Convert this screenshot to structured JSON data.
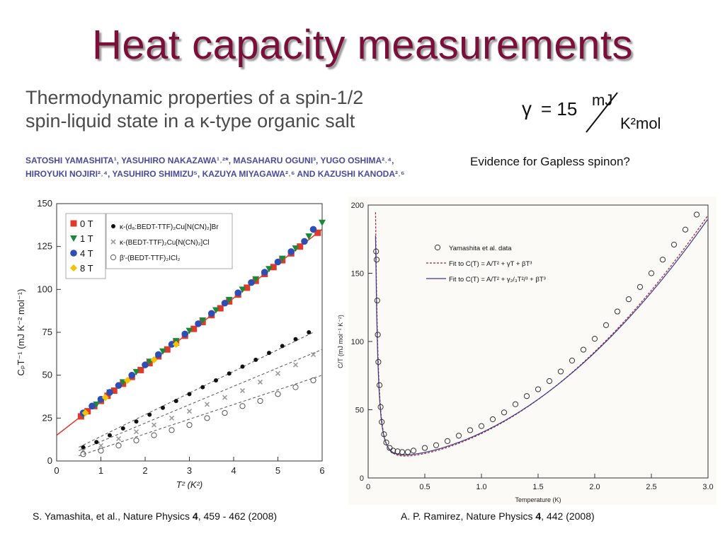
{
  "slide": {
    "title": "Heat capacity measurements",
    "paper_title_line1": "Thermodynamic properties of a spin-1/2",
    "paper_title_line2": "spin-liquid state in a κ-type organic salt",
    "authors_line1": "SATOSHI YAMASHITA¹, YASUHIRO NAKAZAWA¹˒²*, MASAHARU OGUNI³, YUGO OSHIMA²˒⁴,",
    "authors_line2": "HIROYUKI NOJIRI²˒⁴, YASUHIRO SHIMIZU⁵, KAZUYA MIYAGAWA²˒⁶ AND KAZUSHI KANODA²˒⁶",
    "gamma_symbol": "γ",
    "gamma_eq": "= 15",
    "gamma_unit_num": "mJ",
    "gamma_unit_den": "K²mol",
    "evidence": "Evidence for Gapless spinon?",
    "citation_left_pre": "S. Yamashita, et al., Nature Physics ",
    "citation_left_vol": "4",
    "citation_left_post": ", 459 - 462 (2008)",
    "citation_right_pre": "A. P. Ramirez, Nature Physics ",
    "citation_right_vol": "4",
    "citation_right_post": ", 442 (2008)"
  },
  "chart_data": [
    {
      "type": "scatter",
      "xlabel": "T² (K²)",
      "ylabel": "CₚT⁻¹ (mJ K⁻² mol⁻¹)",
      "xlim": [
        0,
        6
      ],
      "ylim": [
        0,
        150
      ],
      "xticks": [
        "0",
        "1",
        "2",
        "3",
        "4",
        "5",
        "6"
      ],
      "yticks": [
        "0",
        "25",
        "50",
        "75",
        "100",
        "125",
        "150"
      ],
      "legend_fields": [
        "0 T",
        "1 T",
        "4 T",
        "8 T"
      ],
      "legend_fields_colors": [
        "#e23a2a",
        "#1a8a3a",
        "#2d4fb5",
        "#f0c400"
      ],
      "legend_samples": [
        "κ-(d₈:BEDT-TTF)₂Cu[N(CN)₂]Br",
        "κ-(BEDT-TTF)₂Cu[N(CN)₂]Cl",
        "β′-(BEDT-TTF)₂ICl₂"
      ],
      "legend_placement": "top-right",
      "fit_line": {
        "intercept": 15.0,
        "slope": 20.0
      },
      "series": [
        {
          "name": "0 T",
          "color": "#e23a2a",
          "marker": "square",
          "x": [
            0.55,
            0.7,
            0.85,
            1.0,
            1.15,
            1.3,
            1.5,
            1.7,
            1.9,
            2.1,
            2.3,
            2.5,
            2.7,
            2.9,
            3.1,
            3.3,
            3.5,
            3.7,
            3.9,
            4.1,
            4.3,
            4.5,
            4.7,
            4.9,
            5.1,
            5.3,
            5.5,
            5.9
          ],
          "y": [
            26,
            29,
            32,
            35,
            38,
            41,
            45,
            49,
            53,
            57,
            61,
            65,
            69,
            73,
            77,
            81,
            85,
            89,
            93,
            97,
            101,
            105,
            109,
            113,
            117,
            121,
            125,
            133
          ]
        },
        {
          "name": "1 T",
          "color": "#1a8a3a",
          "marker": "triangle",
          "x": [
            0.6,
            0.9,
            1.2,
            1.5,
            1.8,
            2.1,
            2.4,
            2.7,
            3.0,
            3.3,
            3.6,
            3.9,
            4.2,
            4.5,
            4.8,
            5.1,
            5.4,
            5.7,
            6.0
          ],
          "y": [
            27,
            33,
            40,
            46,
            52,
            58,
            64,
            70,
            76,
            82,
            88,
            94,
            100,
            106,
            112,
            118,
            124,
            131,
            139
          ]
        },
        {
          "name": "4 T",
          "color": "#2d4fb5",
          "marker": "circle",
          "x": [
            0.6,
            0.8,
            1.0,
            1.2,
            1.4,
            1.7,
            2.0,
            2.3,
            2.6,
            2.9,
            3.2,
            3.5,
            3.8,
            4.1,
            4.4,
            4.7,
            5.0,
            5.3,
            5.6,
            5.8
          ],
          "y": [
            28,
            32,
            36,
            40,
            44,
            50,
            56,
            62,
            68,
            74,
            80,
            86,
            92,
            98,
            104,
            110,
            116,
            122,
            128,
            135
          ]
        },
        {
          "name": "8 T",
          "color": "#f0c400",
          "marker": "diamond",
          "x": [
            0.65,
            1.1,
            1.6,
            2.2,
            2.7
          ],
          "y": [
            28,
            37,
            47,
            59,
            68
          ]
        },
        {
          "name": "κ-(d₈:BEDT-TTF)₂Cu[N(CN)₂]Br",
          "color": "#111111",
          "marker": "dot",
          "x": [
            0.6,
            0.9,
            1.2,
            1.5,
            1.8,
            2.1,
            2.4,
            2.7,
            3.0,
            3.3,
            3.6,
            3.9,
            4.2,
            4.5,
            4.8,
            5.1,
            5.4,
            5.7
          ],
          "y": [
            8,
            11,
            15,
            19,
            23,
            27,
            31,
            35,
            39,
            43,
            47,
            51,
            55,
            59,
            63,
            67,
            71,
            75
          ]
        },
        {
          "name": "κ-(BEDT-TTF)₂Cu[N(CN)₂]Cl",
          "color": "#9a9a9a",
          "marker": "cross",
          "x": [
            0.6,
            1.0,
            1.4,
            1.8,
            2.2,
            2.6,
            3.0,
            3.4,
            3.8,
            4.2,
            4.6,
            5.0,
            5.4,
            5.8
          ],
          "y": [
            6,
            9,
            13,
            17,
            21,
            25,
            29,
            33,
            37,
            41,
            46,
            51,
            56,
            62
          ]
        },
        {
          "name": "β′-(BEDT-TTF)₂ICl₂",
          "color": "#555555",
          "marker": "open-circle",
          "x": [
            0.6,
            1.0,
            1.4,
            1.8,
            2.2,
            2.6,
            3.0,
            3.4,
            3.8,
            4.2,
            4.6,
            5.0,
            5.4,
            5.8
          ],
          "y": [
            4,
            6,
            9,
            12,
            15,
            18,
            21,
            25,
            28,
            32,
            35,
            39,
            43,
            47
          ]
        }
      ]
    },
    {
      "type": "scatter",
      "xlabel": "Temperature (K)",
      "ylabel": "C/T (mJ mol⁻¹ K⁻²)",
      "xlim": [
        0,
        3.0
      ],
      "ylim": [
        0,
        200
      ],
      "xticks": [
        "0",
        "0.5",
        "1.0",
        "1.5",
        "2.0",
        "2.5",
        "3.0"
      ],
      "yticks": [
        "0",
        "50",
        "100",
        "150",
        "200"
      ],
      "legend": [
        "Yamashita et al. data",
        "Fit to C(T) = A/T² + γT + βT³",
        "Fit to C(T) = A/T² + γ₂/₃T²/³ + βT³"
      ],
      "legend_placement": "top-left",
      "series": [
        {
          "name": "Yamashita et al. data",
          "marker": "open-circle",
          "x": [
            0.07,
            0.075,
            0.08,
            0.085,
            0.09,
            0.1,
            0.11,
            0.12,
            0.14,
            0.16,
            0.19,
            0.22,
            0.26,
            0.3,
            0.35,
            0.4,
            0.5,
            0.6,
            0.7,
            0.8,
            0.9,
            1.0,
            1.1,
            1.2,
            1.3,
            1.4,
            1.5,
            1.6,
            1.7,
            1.8,
            1.9,
            2.0,
            2.1,
            2.2,
            2.3,
            2.4,
            2.5,
            2.6,
            2.7,
            2.8,
            2.9
          ],
          "y": [
            166,
            160,
            130,
            105,
            85,
            68,
            52,
            41,
            32,
            26,
            22,
            20,
            19.5,
            19,
            19,
            20,
            22,
            24,
            27,
            31,
            35,
            38,
            43,
            48,
            54,
            60,
            65,
            71,
            78,
            86,
            94,
            102,
            112,
            122,
            131,
            140,
            150,
            160,
            171,
            182,
            193
          ]
        }
      ]
    }
  ]
}
